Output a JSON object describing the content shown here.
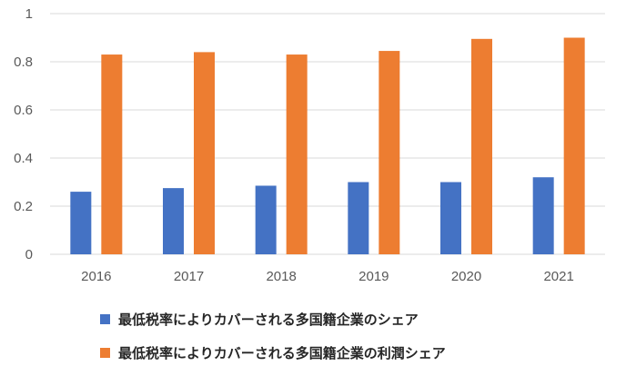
{
  "chart_data": {
    "type": "bar",
    "categories": [
      "2016",
      "2017",
      "2018",
      "2019",
      "2020",
      "2021"
    ],
    "series": [
      {
        "name": "最低税率によりカバーされる多国籍企業のシェア",
        "color": "#4472C4",
        "values": [
          0.26,
          0.275,
          0.285,
          0.3,
          0.3,
          0.32
        ]
      },
      {
        "name": "最低税率によりカバーされる多国籍企業の利潤シェア",
        "color": "#ED7D31",
        "values": [
          0.83,
          0.84,
          0.83,
          0.845,
          0.895,
          0.9
        ]
      }
    ],
    "ylim": [
      0,
      1
    ],
    "yticks": [
      0,
      0.2,
      0.4,
      0.6,
      0.8,
      1
    ],
    "ytick_labels": [
      "0",
      "0.2",
      "0.4",
      "0.6",
      "0.8",
      "1"
    ],
    "grid": true,
    "legend_position": "bottom"
  }
}
